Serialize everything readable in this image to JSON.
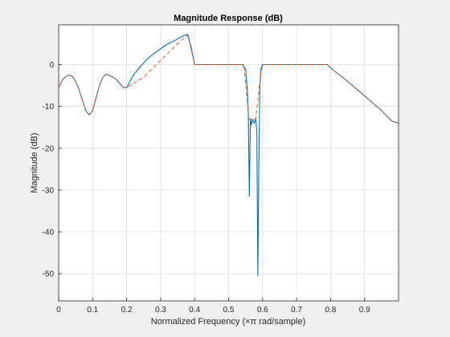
{
  "chart_data": {
    "type": "line",
    "title": "Magnitude Response (dB)",
    "xlabel": "Normalized Frequency (×π rad/sample)",
    "ylabel": "Magnitude (dB)",
    "xlim": [
      0,
      1
    ],
    "ylim": [
      -56.5,
      9.5
    ],
    "xticks": [
      "0",
      "0.1",
      "0.2",
      "0.3",
      "0.4",
      "0.5",
      "0.6",
      "0.7",
      "0.8",
      "0.9"
    ],
    "yticks": [
      "0",
      "-10",
      "-20",
      "-30",
      "-40",
      "-50"
    ],
    "grid": true,
    "colors": {
      "series_1": "#0072bd",
      "series_2": "#d95319"
    },
    "series": [
      {
        "line_style": "solid",
        "x": [
          0,
          0.01,
          0.02,
          0.03,
          0.04,
          0.05,
          0.06,
          0.07,
          0.08,
          0.09,
          0.1,
          0.11,
          0.12,
          0.13,
          0.14,
          0.15,
          0.16,
          0.17,
          0.18,
          0.19,
          0.2,
          0.22,
          0.24,
          0.26,
          0.28,
          0.3,
          0.32,
          0.34,
          0.36,
          0.37,
          0.38,
          0.39,
          0.4,
          0.45,
          0.5,
          0.54,
          0.55,
          0.555,
          0.558,
          0.561,
          0.564,
          0.567,
          0.57,
          0.575,
          0.58,
          0.583,
          0.586,
          0.589,
          0.592,
          0.595,
          0.6,
          0.65,
          0.7,
          0.75,
          0.79,
          0.8,
          0.85,
          0.9,
          0.95,
          0.98,
          1.0
        ],
        "y": [
          -5.5,
          -3.8,
          -2.9,
          -2.5,
          -2.8,
          -4.0,
          -6.0,
          -8.5,
          -11.0,
          -12.0,
          -11.0,
          -8.0,
          -5.0,
          -3.0,
          -2.3,
          -2.6,
          -3.0,
          -3.6,
          -4.5,
          -5.5,
          -5.5,
          -2.5,
          -0.5,
          1.3,
          2.6,
          3.8,
          4.9,
          5.7,
          6.6,
          7.0,
          7.2,
          4.0,
          0.0,
          0.0,
          0.0,
          0.0,
          -1.0,
          -6.0,
          -12.0,
          -31.5,
          -13.0,
          -14.5,
          -13.0,
          -14.0,
          -13.0,
          -16.0,
          -50.5,
          -24.0,
          -5.0,
          -1.0,
          0.0,
          0.0,
          0.0,
          0.0,
          0.0,
          -0.8,
          -4.0,
          -7.5,
          -11.0,
          -13.5,
          -14.0
        ]
      },
      {
        "line_style": "dashed",
        "x": [
          0,
          0.01,
          0.02,
          0.03,
          0.04,
          0.05,
          0.06,
          0.07,
          0.08,
          0.09,
          0.1,
          0.11,
          0.12,
          0.13,
          0.14,
          0.15,
          0.16,
          0.17,
          0.18,
          0.19,
          0.2,
          0.25,
          0.3,
          0.35,
          0.38,
          0.4,
          0.45,
          0.5,
          0.545,
          0.56,
          0.58,
          0.595,
          0.6,
          0.65,
          0.7,
          0.75,
          0.79,
          0.8,
          0.85,
          0.9,
          0.95,
          0.98,
          1.0
        ],
        "y": [
          -5.5,
          -3.8,
          -2.9,
          -2.5,
          -2.8,
          -4.0,
          -6.0,
          -8.5,
          -11.0,
          -12.0,
          -11.0,
          -8.0,
          -5.0,
          -3.0,
          -2.3,
          -2.6,
          -3.0,
          -3.6,
          -4.5,
          -5.5,
          -5.5,
          -3.0,
          1.0,
          5.0,
          7.0,
          0.0,
          0.0,
          0.0,
          0.0,
          -13.0,
          -13.0,
          -2.0,
          0.0,
          0.0,
          0.0,
          0.0,
          0.0,
          -0.8,
          -4.0,
          -7.5,
          -11.0,
          -13.5,
          -14.0
        ]
      }
    ]
  }
}
